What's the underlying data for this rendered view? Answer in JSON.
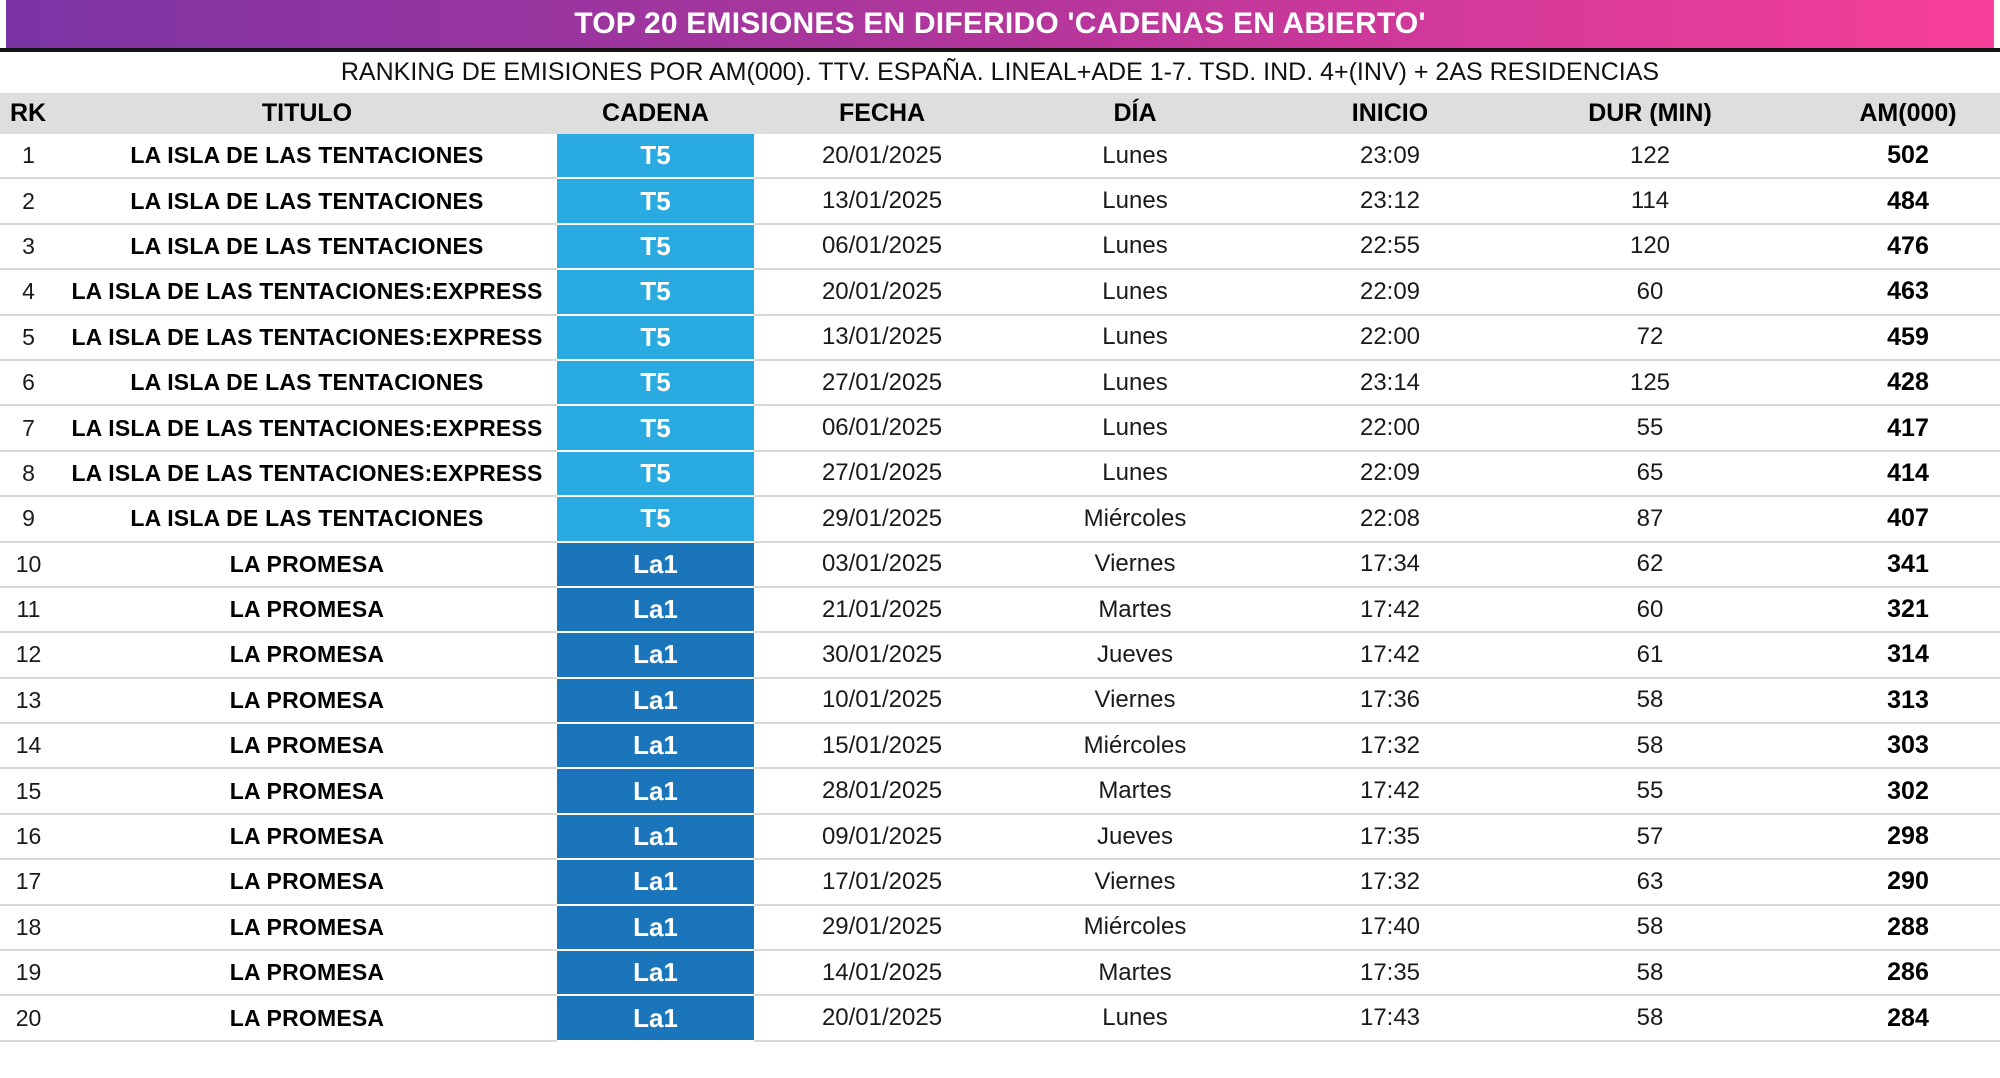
{
  "header": {
    "title": "TOP 20 EMISIONES EN DIFERIDO 'CADENAS EN ABIERTO'",
    "subtitle": "RANKING DE EMISIONES POR AM(000). TTV. ESPAÑA. LINEAL+ADE 1-7. TSD. IND. 4+(INV) + 2AS RESIDENCIAS",
    "gradient_left": "#7B34A4",
    "gradient_right": "#F83E99"
  },
  "table": {
    "columns": [
      "RK",
      "TITULO",
      "CADENA",
      "FECHA",
      "DÍA",
      "INICIO",
      "DUR (MIN)",
      "AM(000)"
    ],
    "channel_colors": {
      "T5": "#29ABE2",
      "La1": "#1B75BB"
    },
    "rows": [
      {
        "rk": 1,
        "titulo": "LA ISLA DE LAS TENTACIONES",
        "cadena": "T5",
        "fecha": "20/01/2025",
        "dia": "Lunes",
        "inicio": "23:09",
        "dur": 122,
        "am": 502
      },
      {
        "rk": 2,
        "titulo": "LA ISLA DE LAS TENTACIONES",
        "cadena": "T5",
        "fecha": "13/01/2025",
        "dia": "Lunes",
        "inicio": "23:12",
        "dur": 114,
        "am": 484
      },
      {
        "rk": 3,
        "titulo": "LA ISLA DE LAS TENTACIONES",
        "cadena": "T5",
        "fecha": "06/01/2025",
        "dia": "Lunes",
        "inicio": "22:55",
        "dur": 120,
        "am": 476
      },
      {
        "rk": 4,
        "titulo": "LA ISLA DE LAS TENTACIONES:EXPRESS",
        "cadena": "T5",
        "fecha": "20/01/2025",
        "dia": "Lunes",
        "inicio": "22:09",
        "dur": 60,
        "am": 463
      },
      {
        "rk": 5,
        "titulo": "LA ISLA DE LAS TENTACIONES:EXPRESS",
        "cadena": "T5",
        "fecha": "13/01/2025",
        "dia": "Lunes",
        "inicio": "22:00",
        "dur": 72,
        "am": 459
      },
      {
        "rk": 6,
        "titulo": "LA ISLA DE LAS TENTACIONES",
        "cadena": "T5",
        "fecha": "27/01/2025",
        "dia": "Lunes",
        "inicio": "23:14",
        "dur": 125,
        "am": 428
      },
      {
        "rk": 7,
        "titulo": "LA ISLA DE LAS TENTACIONES:EXPRESS",
        "cadena": "T5",
        "fecha": "06/01/2025",
        "dia": "Lunes",
        "inicio": "22:00",
        "dur": 55,
        "am": 417
      },
      {
        "rk": 8,
        "titulo": "LA ISLA DE LAS TENTACIONES:EXPRESS",
        "cadena": "T5",
        "fecha": "27/01/2025",
        "dia": "Lunes",
        "inicio": "22:09",
        "dur": 65,
        "am": 414
      },
      {
        "rk": 9,
        "titulo": "LA ISLA DE LAS TENTACIONES",
        "cadena": "T5",
        "fecha": "29/01/2025",
        "dia": "Miércoles",
        "inicio": "22:08",
        "dur": 87,
        "am": 407
      },
      {
        "rk": 10,
        "titulo": "LA PROMESA",
        "cadena": "La1",
        "fecha": "03/01/2025",
        "dia": "Viernes",
        "inicio": "17:34",
        "dur": 62,
        "am": 341
      },
      {
        "rk": 11,
        "titulo": "LA PROMESA",
        "cadena": "La1",
        "fecha": "21/01/2025",
        "dia": "Martes",
        "inicio": "17:42",
        "dur": 60,
        "am": 321
      },
      {
        "rk": 12,
        "titulo": "LA PROMESA",
        "cadena": "La1",
        "fecha": "30/01/2025",
        "dia": "Jueves",
        "inicio": "17:42",
        "dur": 61,
        "am": 314
      },
      {
        "rk": 13,
        "titulo": "LA PROMESA",
        "cadena": "La1",
        "fecha": "10/01/2025",
        "dia": "Viernes",
        "inicio": "17:36",
        "dur": 58,
        "am": 313
      },
      {
        "rk": 14,
        "titulo": "LA PROMESA",
        "cadena": "La1",
        "fecha": "15/01/2025",
        "dia": "Miércoles",
        "inicio": "17:32",
        "dur": 58,
        "am": 303
      },
      {
        "rk": 15,
        "titulo": "LA PROMESA",
        "cadena": "La1",
        "fecha": "28/01/2025",
        "dia": "Martes",
        "inicio": "17:42",
        "dur": 55,
        "am": 302
      },
      {
        "rk": 16,
        "titulo": "LA PROMESA",
        "cadena": "La1",
        "fecha": "09/01/2025",
        "dia": "Jueves",
        "inicio": "17:35",
        "dur": 57,
        "am": 298
      },
      {
        "rk": 17,
        "titulo": "LA PROMESA",
        "cadena": "La1",
        "fecha": "17/01/2025",
        "dia": "Viernes",
        "inicio": "17:32",
        "dur": 63,
        "am": 290
      },
      {
        "rk": 18,
        "titulo": "LA PROMESA",
        "cadena": "La1",
        "fecha": "29/01/2025",
        "dia": "Miércoles",
        "inicio": "17:40",
        "dur": 58,
        "am": 288
      },
      {
        "rk": 19,
        "titulo": "LA PROMESA",
        "cadena": "La1",
        "fecha": "14/01/2025",
        "dia": "Martes",
        "inicio": "17:35",
        "dur": 58,
        "am": 286
      },
      {
        "rk": 20,
        "titulo": "LA PROMESA",
        "cadena": "La1",
        "fecha": "20/01/2025",
        "dia": "Lunes",
        "inicio": "17:43",
        "dur": 58,
        "am": 284
      }
    ]
  }
}
